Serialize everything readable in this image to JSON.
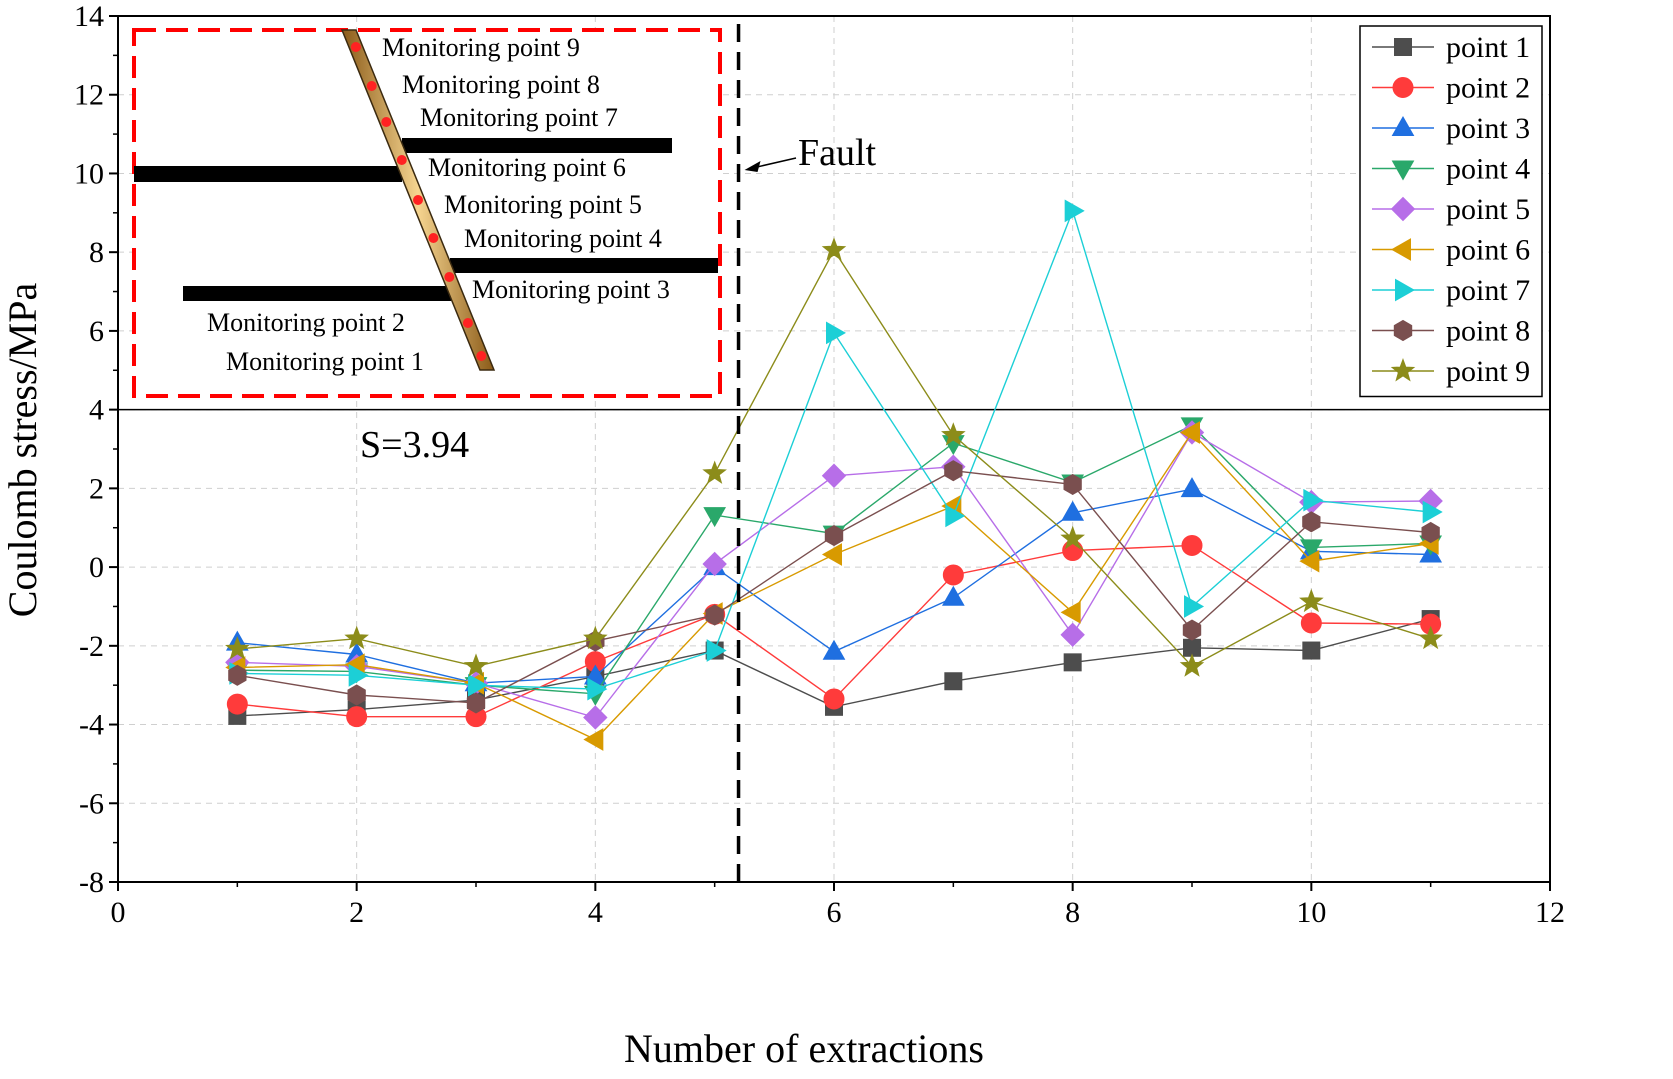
{
  "chart_data": {
    "type": "line",
    "title": "",
    "xlabel": "Number of extractions",
    "ylabel": "Coulomb stress/MPa",
    "xlim": [
      0,
      12
    ],
    "ylim": [
      -8,
      14
    ],
    "xticks": [
      0,
      2,
      4,
      6,
      8,
      10,
      12
    ],
    "yticks": [
      -8,
      -6,
      -4,
      -2,
      0,
      2,
      4,
      6,
      8,
      10,
      12,
      14
    ],
    "x": [
      1,
      2,
      3,
      4,
      5,
      6,
      7,
      8,
      9,
      10,
      11
    ],
    "grid": true,
    "legend_position": "top-right",
    "series": [
      {
        "name": "point 1",
        "color": "#4d4d4d",
        "marker": "square",
        "values": [
          -3.78,
          -3.62,
          -3.38,
          -2.78,
          -2.12,
          -3.55,
          -2.9,
          -2.42,
          -2.05,
          -2.12,
          -1.32
        ]
      },
      {
        "name": "point 2",
        "color": "#ff3b3b",
        "marker": "circle",
        "values": [
          -3.48,
          -3.8,
          -3.8,
          -2.4,
          -1.2,
          -3.35,
          -0.2,
          0.42,
          0.55,
          -1.42,
          -1.45
        ]
      },
      {
        "name": "point 3",
        "color": "#1f6fe0",
        "marker": "triangle-up",
        "values": [
          -1.92,
          -2.22,
          -2.95,
          -2.78,
          0.0,
          -2.15,
          -0.78,
          1.38,
          1.98,
          0.4,
          0.32
        ]
      },
      {
        "name": "point 4",
        "color": "#2aa86a",
        "marker": "triangle-down",
        "values": [
          -2.62,
          -2.65,
          -3.0,
          -3.22,
          1.32,
          0.85,
          3.15,
          2.15,
          3.6,
          0.5,
          0.6
        ]
      },
      {
        "name": "point 5",
        "color": "#b76ee8",
        "marker": "diamond",
        "values": [
          -2.42,
          -2.52,
          -2.95,
          -3.82,
          0.08,
          2.32,
          2.55,
          -1.72,
          3.42,
          1.65,
          1.68
        ]
      },
      {
        "name": "point 6",
        "color": "#d89a00",
        "marker": "triangle-left",
        "values": [
          -2.55,
          -2.48,
          -2.95,
          -4.38,
          -1.18,
          0.32,
          1.55,
          -1.15,
          3.42,
          0.15,
          0.6
        ]
      },
      {
        "name": "point 7",
        "color": "#1ccfd6",
        "marker": "triangle-right",
        "values": [
          -2.7,
          -2.75,
          -3.0,
          -3.1,
          -2.12,
          5.95,
          1.3,
          9.05,
          -1.0,
          1.7,
          1.4
        ]
      },
      {
        "name": "point 8",
        "color": "#7a4f4f",
        "marker": "hexagon",
        "values": [
          -2.75,
          -3.25,
          -3.45,
          -1.88,
          -1.22,
          0.8,
          2.45,
          2.1,
          -1.6,
          1.15,
          0.88
        ]
      },
      {
        "name": "point 9",
        "color": "#8c8c1a",
        "marker": "star",
        "values": [
          -2.08,
          -1.82,
          -2.52,
          -1.82,
          2.38,
          8.05,
          3.35,
          0.72,
          -2.52,
          -0.88,
          -1.82
        ]
      }
    ],
    "annotations": {
      "fault_label": "Fault",
      "fault_x": 5.2,
      "threshold_label": "S=3.94",
      "threshold_y": 4
    },
    "inset": {
      "monitoring_labels": [
        "Monitoring point 9",
        "Monitoring point 8",
        "Monitoring point 7",
        "Monitoring point 6",
        "Monitoring point 5",
        "Monitoring point 4",
        "Monitoring point 3",
        "Monitoring point 2",
        "Monitoring point 1"
      ]
    }
  },
  "colors": {
    "axis": "#000000",
    "grid": "#cfcfcf",
    "inset_border": "#ff0000",
    "fault_strip": "#c8913c",
    "monitor_dot": "#ff2222"
  }
}
